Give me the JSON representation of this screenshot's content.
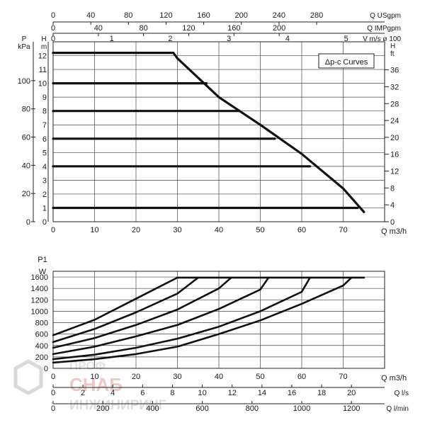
{
  "colors": {
    "curve": "#111111",
    "grid": "#444444",
    "watermark": "#c0392b"
  },
  "chart_data": [
    {
      "type": "line",
      "title": "Δp-c Curves",
      "xlabel": "Q m3/h",
      "x_ticks": [
        0,
        10,
        20,
        30,
        40,
        50,
        60,
        70
      ],
      "xlim": [
        0,
        80
      ],
      "top_axes": [
        {
          "label": "Q USgpm",
          "ticks": [
            0,
            40,
            80,
            120,
            160,
            200,
            240,
            280
          ],
          "factor": 4.4029
        },
        {
          "label": "Q IMPgpm",
          "ticks": [
            0,
            40,
            80,
            120,
            160,
            200
          ],
          "factor": 3.6662
        },
        {
          "label": "V m/s ø 100",
          "ticks": [
            0,
            1,
            2,
            3,
            4,
            5
          ],
          "factor": 0.0707
        }
      ],
      "left_axes": [
        {
          "label_top": "P",
          "label_bottom": "kPa",
          "ticks": [
            0,
            20,
            40,
            60,
            80,
            100
          ]
        },
        {
          "label_top": "H",
          "label_bottom": "m",
          "ticks": [
            0,
            1,
            2,
            3,
            4,
            5,
            6,
            7,
            8,
            9,
            10,
            11,
            12
          ]
        }
      ],
      "right_axis": {
        "label_top": "H",
        "label_bottom": "ft",
        "ticks": [
          0,
          4,
          8,
          12,
          16,
          20,
          24,
          28,
          32,
          36
        ]
      },
      "ylim": [
        0,
        13
      ],
      "grid": true,
      "series": [
        {
          "x": [
            0,
            29,
            30,
            40,
            50,
            60,
            70,
            75
          ],
          "y": [
            12.2,
            12.2,
            11.8,
            9.0,
            7.0,
            4.9,
            2.4,
            0.7
          ]
        },
        {
          "x": [
            0,
            37
          ],
          "y": [
            10,
            10
          ]
        },
        {
          "x": [
            0,
            45
          ],
          "y": [
            8,
            8
          ]
        },
        {
          "x": [
            0,
            53.5
          ],
          "y": [
            6,
            6
          ]
        },
        {
          "x": [
            0,
            62
          ],
          "y": [
            4,
            4
          ]
        },
        {
          "x": [
            0,
            73.5
          ],
          "y": [
            1,
            1
          ]
        }
      ]
    },
    {
      "type": "line",
      "ylabel_top": "P1",
      "ylabel_unit": "W",
      "xlabel": "Q m3/h",
      "y_ticks": [
        0,
        200,
        400,
        600,
        800,
        1000,
        1200,
        1400,
        1600
      ],
      "ylim": [
        0,
        1700
      ],
      "x_ticks": [
        0,
        10,
        20,
        30,
        40,
        50,
        60,
        70
      ],
      "xlim": [
        0,
        80
      ],
      "grid": true,
      "bottom_axes": [
        {
          "label": "Q l/s",
          "ticks": [
            0,
            2,
            4,
            6,
            8,
            10,
            12,
            14,
            16,
            18,
            20
          ],
          "factor": 0.27778
        },
        {
          "label": "Q l/min",
          "ticks": [
            0,
            200,
            400,
            600,
            800,
            1000,
            1200
          ],
          "factor": 16.667
        }
      ],
      "series": [
        {
          "x": [
            0,
            10,
            20,
            30,
            75
          ],
          "y": [
            580,
            850,
            1220,
            1590,
            1590
          ]
        },
        {
          "x": [
            0,
            10,
            20,
            30,
            35
          ],
          "y": [
            460,
            690,
            980,
            1310,
            1590
          ]
        },
        {
          "x": [
            0,
            10,
            20,
            30,
            40,
            43
          ],
          "y": [
            360,
            530,
            760,
            1030,
            1400,
            1590
          ]
        },
        {
          "x": [
            0,
            10,
            20,
            30,
            40,
            50,
            52
          ],
          "y": [
            250,
            380,
            560,
            760,
            1040,
            1380,
            1590
          ]
        },
        {
          "x": [
            0,
            10,
            20,
            30,
            40,
            50,
            60,
            62
          ],
          "y": [
            160,
            240,
            360,
            520,
            730,
            1000,
            1340,
            1590
          ]
        },
        {
          "x": [
            0,
            10,
            20,
            30,
            40,
            50,
            60,
            70,
            72
          ],
          "y": [
            100,
            160,
            250,
            380,
            600,
            840,
            1130,
            1450,
            1590
          ]
        }
      ]
    }
  ],
  "watermark": {
    "line1": "ПРОФ",
    "line2": "СНАБ",
    "line3": "ИНЖИНИРИНГ"
  }
}
